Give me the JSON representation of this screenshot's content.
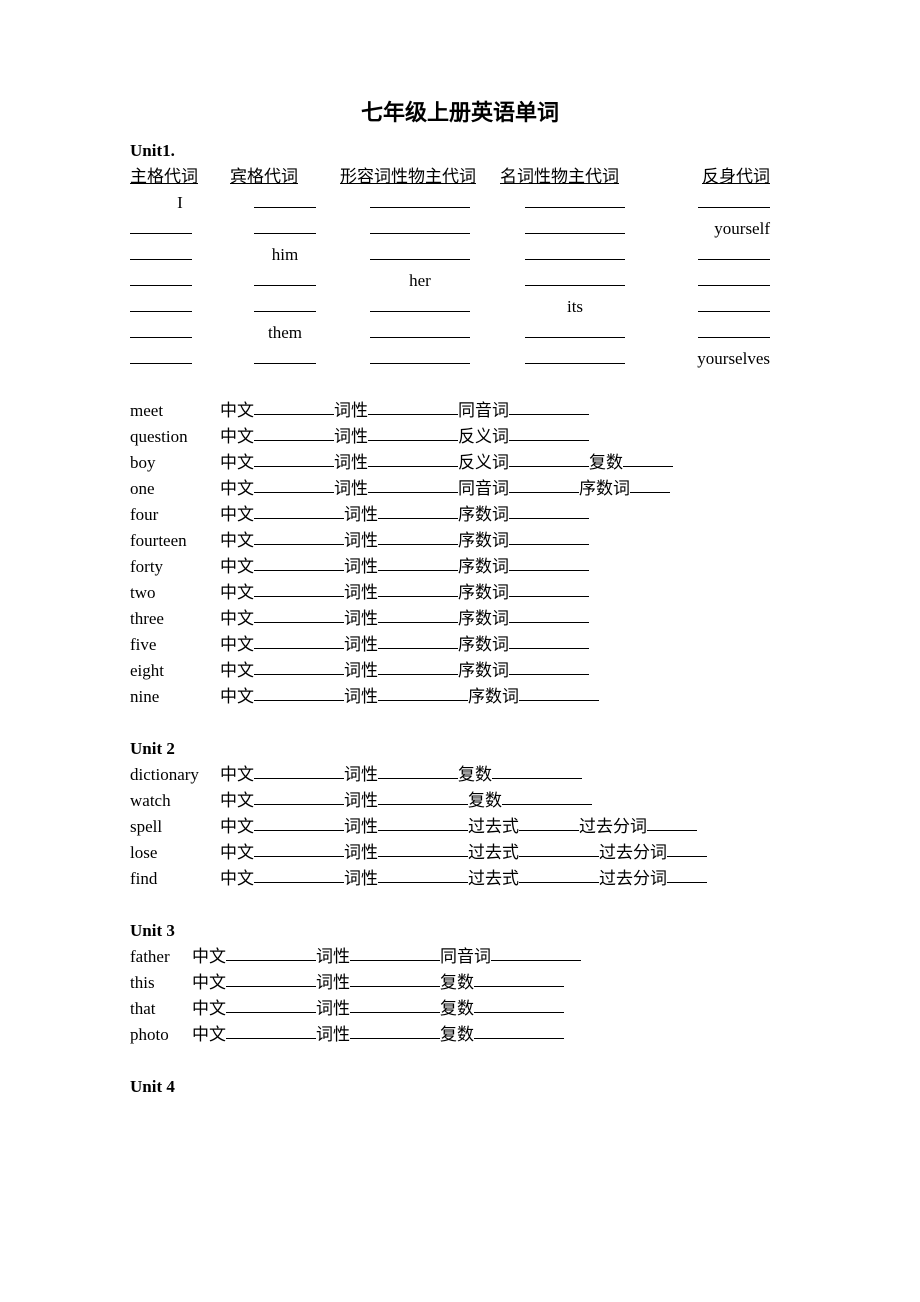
{
  "title": "七年级上册英语单词",
  "unit1": {
    "heading": "Unit1.",
    "headers": [
      "主格代词",
      "宾格代词",
      "形容词性物主代词",
      "名词性物主代词",
      "反身代词"
    ],
    "rows": [
      {
        "c1": "I",
        "c2": "",
        "c3": "",
        "c4": "",
        "c5": ""
      },
      {
        "c1": "",
        "c2": "",
        "c3": "",
        "c4": "",
        "c5": "yourself"
      },
      {
        "c1": "",
        "c2": "him",
        "c3": "",
        "c4": "",
        "c5": ""
      },
      {
        "c1": "",
        "c2": "",
        "c3": "her",
        "c4": "",
        "c5": ""
      },
      {
        "c1": "",
        "c2": "",
        "c3": "",
        "c4": "its",
        "c5": ""
      },
      {
        "c1": "",
        "c2": "them",
        "c3": "",
        "c4": "",
        "c5": ""
      },
      {
        "c1": "",
        "c2": "",
        "c3": "",
        "c4": "",
        "c5": "yourselves"
      }
    ],
    "words": [
      {
        "w": "meet",
        "f": [
          {
            "l": "中文",
            "u": 80
          },
          {
            "l": " 词性",
            "u": 90
          },
          {
            "l": " 同音词",
            "u": 80
          }
        ]
      },
      {
        "w": "question",
        "f": [
          {
            "l": "中文",
            "u": 80
          },
          {
            "l": " 词性",
            "u": 90
          },
          {
            "l": " 反义词",
            "u": 80
          }
        ]
      },
      {
        "w": "boy",
        "f": [
          {
            "l": "中文",
            "u": 80
          },
          {
            "l": " 词性",
            "u": 90
          },
          {
            "l": " 反义词",
            "u": 80
          },
          {
            "l": " 复数",
            "u": 50
          }
        ]
      },
      {
        "w": "one",
        "f": [
          {
            "l": "中文",
            "u": 80
          },
          {
            "l": " 词性",
            "u": 90
          },
          {
            "l": " 同音词 ",
            "u": 70
          },
          {
            "l": " 序数词",
            "u": 40
          }
        ]
      },
      {
        "w": "four",
        "f": [
          {
            "l": "中文",
            "u": 90
          },
          {
            "l": " 词性",
            "u": 80
          },
          {
            "l": "序数词",
            "u": 80
          }
        ]
      },
      {
        "w": "fourteen",
        "f": [
          {
            "l": "中文",
            "u": 90
          },
          {
            "l": " 词性",
            "u": 80
          },
          {
            "l": "序数词",
            "u": 80
          }
        ]
      },
      {
        "w": "forty",
        "f": [
          {
            "l": "中文",
            "u": 90
          },
          {
            "l": " 词性",
            "u": 80
          },
          {
            "l": "序数词",
            "u": 80
          }
        ]
      },
      {
        "w": "two",
        "f": [
          {
            "l": "中文",
            "u": 90
          },
          {
            "l": " 词性",
            "u": 80
          },
          {
            "l": "序数词",
            "u": 80
          }
        ]
      },
      {
        "w": "three",
        "f": [
          {
            "l": "中文",
            "u": 90
          },
          {
            "l": " 词性",
            "u": 80
          },
          {
            "l": "序数词",
            "u": 80
          }
        ]
      },
      {
        "w": "five",
        "f": [
          {
            "l": "中文",
            "u": 90
          },
          {
            "l": " 词性",
            "u": 80
          },
          {
            "l": "序数词",
            "u": 80
          }
        ]
      },
      {
        "w": "eight",
        "f": [
          {
            "l": "中文",
            "u": 90
          },
          {
            "l": " 词性",
            "u": 80
          },
          {
            "l": "序数词",
            "u": 80
          }
        ]
      },
      {
        "w": "nine",
        "f": [
          {
            "l": " 中文",
            "u": 90
          },
          {
            "l": "词性",
            "u": 90
          },
          {
            "l": "序数词",
            "u": 80
          }
        ]
      }
    ]
  },
  "unit2": {
    "heading": "Unit 2",
    "words": [
      {
        "w": "dictionary",
        "f": [
          {
            "l": " 中文",
            "u": 90
          },
          {
            "l": "词性",
            "u": 80
          },
          {
            "l": "复数",
            "u": 90
          }
        ]
      },
      {
        "w": "watch",
        "f": [
          {
            "l": "中文",
            "u": 90
          },
          {
            "l": "词性",
            "u": 90
          },
          {
            "l": "复数",
            "u": 90
          }
        ]
      },
      {
        "w": "spell",
        "f": [
          {
            "l": "中文",
            "u": 90
          },
          {
            "l": "词性",
            "u": 90
          },
          {
            "l": "过去式",
            "u": 60
          },
          {
            "l": "过去分词",
            "u": 50
          }
        ]
      },
      {
        "w": "lose",
        "f": [
          {
            "l": "中文",
            "u": 90
          },
          {
            "l": "词性",
            "u": 90
          },
          {
            "l": "过去式",
            "u": 80
          },
          {
            "l": "过去分词",
            "u": 40
          }
        ]
      },
      {
        "w": "find",
        "f": [
          {
            "l": "中文",
            "u": 90
          },
          {
            "l": "词性",
            "u": 90
          },
          {
            "l": "过去式",
            "u": 80
          },
          {
            "l": "过去分词",
            "u": 40
          }
        ]
      }
    ]
  },
  "unit3": {
    "heading": "Unit 3",
    "words": [
      {
        "w": "father",
        "f": [
          {
            "l": "中文",
            "u": 90
          },
          {
            "l": "词性",
            "u": 90
          },
          {
            "l": "同音词",
            "u": 90
          }
        ]
      },
      {
        "w": "this",
        "f": [
          {
            "l": "中文",
            "u": 90
          },
          {
            "l": "词性",
            "u": 90
          },
          {
            "l": "复数",
            "u": 90
          }
        ]
      },
      {
        "w": "that",
        "f": [
          {
            "l": "中文",
            "u": 90
          },
          {
            "l": "词性",
            "u": 90
          },
          {
            "l": "复数",
            "u": 90
          }
        ]
      },
      {
        "w": "photo",
        "f": [
          {
            "l": " 中文",
            "u": 90
          },
          {
            "l": "词性",
            "u": 90
          },
          {
            "l": "复数",
            "u": 90
          }
        ]
      }
    ]
  },
  "unit4": {
    "heading": "Unit 4"
  }
}
